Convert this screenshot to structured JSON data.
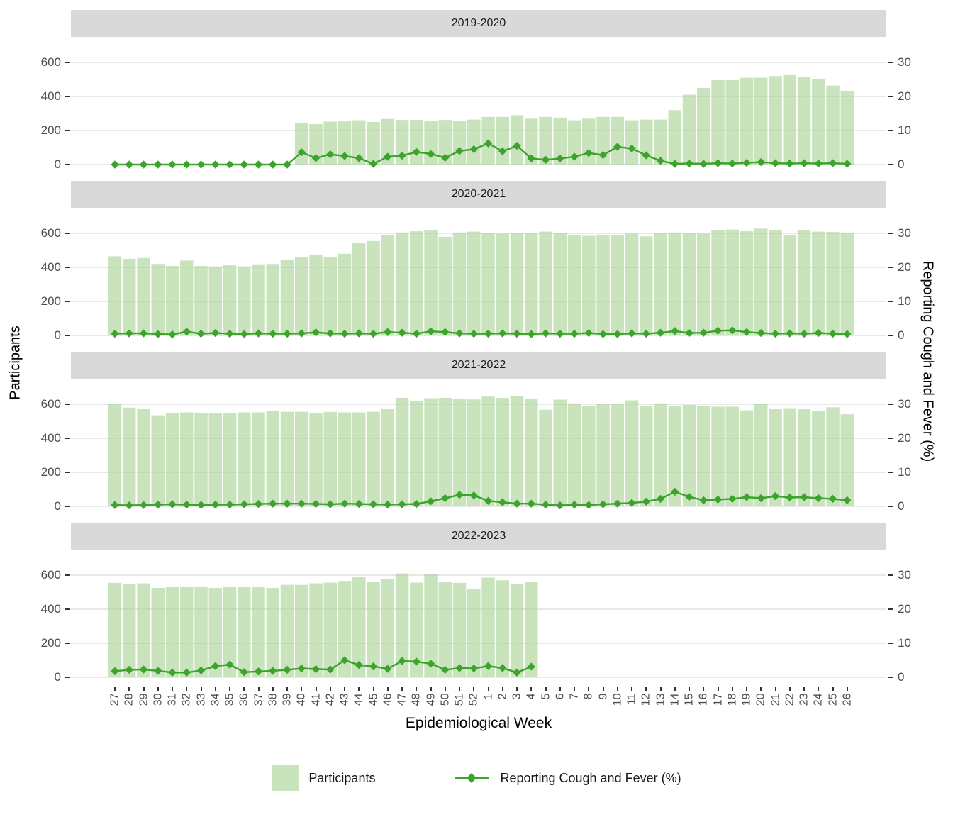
{
  "axes": {
    "y_left_title": "Participants",
    "y_right_title": "Reporting Cough and Fever (%)",
    "x_title": "Epidemiological Week",
    "y_left_ticks": [
      600,
      400,
      200,
      0
    ],
    "y_right_ticks": [
      30,
      20,
      10,
      0
    ],
    "y_left_range": [
      0,
      600
    ],
    "y_right_range": [
      0,
      30
    ],
    "grid": "major-horizontal-only"
  },
  "legend": {
    "participants_label": "Participants",
    "line_label": "Reporting Cough and Fever (%)"
  },
  "colors": {
    "bar_fill": "#c9e4bd",
    "bar_fill_alpha": "rgba(168,212,148,0.62)",
    "line": "#3ca32c",
    "strip_bg": "#d9d9d9",
    "gridline": "#d9d9d9",
    "tick_text": "#4d4d4d",
    "strip_text": "#1a1a1a"
  },
  "chart_data": {
    "type": "bar+line combo, 4 facets",
    "x_label_weeks": [
      "27",
      "28",
      "29",
      "30",
      "31",
      "32",
      "33",
      "34",
      "35",
      "36",
      "37",
      "38",
      "39",
      "40",
      "41",
      "42",
      "43",
      "44",
      "45",
      "46",
      "47",
      "48",
      "49",
      "50",
      "51",
      "52",
      "1",
      "2",
      "3",
      "4",
      "5",
      "6",
      "7",
      "8",
      "9",
      "10",
      "11",
      "12",
      "13",
      "14",
      "15",
      "16",
      "17",
      "18",
      "19",
      "20",
      "21",
      "22",
      "23",
      "24",
      "25",
      "26"
    ],
    "facets": [
      {
        "label": "2019-2020",
        "participants": [
          null,
          null,
          null,
          null,
          null,
          null,
          null,
          null,
          null,
          null,
          null,
          null,
          null,
          246,
          238,
          252,
          256,
          260,
          250,
          268,
          262,
          262,
          255,
          262,
          258,
          264,
          280,
          280,
          290,
          270,
          280,
          276,
          260,
          270,
          280,
          280,
          260,
          264,
          264,
          320,
          410,
          450,
          496,
          496,
          510,
          510,
          520,
          526,
          516,
          504,
          464,
          430
        ],
        "pct_cough_fever": [
          0,
          0,
          0,
          0,
          0,
          0,
          0,
          0,
          0,
          0,
          0,
          0,
          0,
          3.6,
          1.9,
          3.0,
          2.5,
          1.9,
          0.2,
          2.3,
          2.6,
          3.7,
          3.1,
          2.0,
          4.0,
          4.5,
          6.2,
          3.9,
          5.5,
          1.8,
          1.4,
          1.8,
          2.3,
          3.4,
          2.8,
          5.2,
          4.7,
          2.7,
          1.1,
          0.2,
          0.3,
          0.2,
          0.4,
          0.3,
          0.5,
          0.7,
          0.4,
          0.3,
          0.4,
          0.3,
          0.4,
          0.2
        ]
      },
      {
        "label": "2020-2021",
        "participants": [
          465,
          450,
          455,
          420,
          408,
          440,
          408,
          405,
          412,
          405,
          418,
          420,
          445,
          462,
          472,
          460,
          480,
          545,
          555,
          590,
          605,
          612,
          618,
          580,
          605,
          610,
          600,
          598,
          600,
          602,
          610,
          600,
          588,
          585,
          592,
          588,
          598,
          582,
          600,
          605,
          600,
          598,
          620,
          622,
          612,
          628,
          618,
          588,
          618,
          610,
          608,
          605
        ],
        "pct_cough_fever": [
          0.5,
          0.6,
          0.6,
          0.4,
          0.3,
          1.1,
          0.5,
          0.7,
          0.5,
          0.4,
          0.6,
          0.5,
          0.5,
          0.6,
          0.9,
          0.6,
          0.5,
          0.6,
          0.5,
          1.0,
          0.8,
          0.5,
          1.2,
          1.0,
          0.6,
          0.5,
          0.5,
          0.6,
          0.5,
          0.4,
          0.6,
          0.5,
          0.5,
          0.7,
          0.4,
          0.4,
          0.6,
          0.5,
          0.8,
          1.3,
          0.7,
          0.8,
          1.4,
          1.5,
          1.0,
          0.7,
          0.5,
          0.6,
          0.5,
          0.7,
          0.5,
          0.4
        ]
      },
      {
        "label": "2021-2022",
        "participants": [
          600,
          580,
          572,
          535,
          548,
          552,
          548,
          548,
          548,
          552,
          552,
          560,
          556,
          556,
          548,
          555,
          552,
          552,
          556,
          575,
          638,
          620,
          635,
          638,
          630,
          628,
          645,
          637,
          650,
          630,
          568,
          627,
          605,
          589,
          600,
          600,
          623,
          592,
          605,
          589,
          596,
          592,
          586,
          586,
          564,
          600,
          575,
          577,
          575,
          559,
          582,
          541
        ],
        "pct_cough_fever": [
          0.4,
          0.3,
          0.4,
          0.5,
          0.6,
          0.5,
          0.4,
          0.5,
          0.5,
          0.6,
          0.7,
          0.8,
          0.8,
          0.8,
          0.7,
          0.6,
          0.8,
          0.7,
          0.6,
          0.5,
          0.6,
          0.7,
          1.5,
          2.4,
          3.4,
          3.2,
          1.6,
          1.2,
          0.8,
          0.8,
          0.5,
          0.3,
          0.5,
          0.4,
          0.6,
          0.8,
          1.0,
          1.4,
          2.2,
          4.3,
          2.8,
          1.8,
          2.0,
          2.2,
          2.7,
          2.4,
          3.0,
          2.6,
          2.7,
          2.4,
          2.2,
          1.8
        ]
      },
      {
        "label": "2022-2023",
        "participants": [
          555,
          550,
          552,
          525,
          530,
          533,
          530,
          525,
          533,
          533,
          533,
          525,
          543,
          543,
          552,
          556,
          566,
          590,
          562,
          576,
          610,
          556,
          605,
          558,
          555,
          520,
          585,
          570,
          548,
          560,
          null,
          null,
          null,
          null,
          null,
          null,
          null,
          null,
          null,
          null,
          null,
          null,
          null,
          null,
          null,
          null,
          null,
          null,
          null,
          null,
          null,
          null
        ],
        "pct_cough_fever": [
          1.8,
          2.2,
          2.3,
          1.9,
          1.4,
          1.4,
          2.0,
          3.3,
          3.7,
          1.5,
          1.7,
          1.9,
          2.2,
          2.6,
          2.4,
          2.3,
          5.0,
          3.6,
          3.2,
          2.5,
          4.8,
          4.6,
          4.0,
          2.2,
          2.7,
          2.6,
          3.3,
          2.7,
          1.4,
          3.1,
          null,
          null,
          null,
          null,
          null,
          null,
          null,
          null,
          null,
          null,
          null,
          null,
          null,
          null,
          null,
          null,
          null,
          null,
          null,
          null,
          null,
          null
        ]
      }
    ]
  }
}
